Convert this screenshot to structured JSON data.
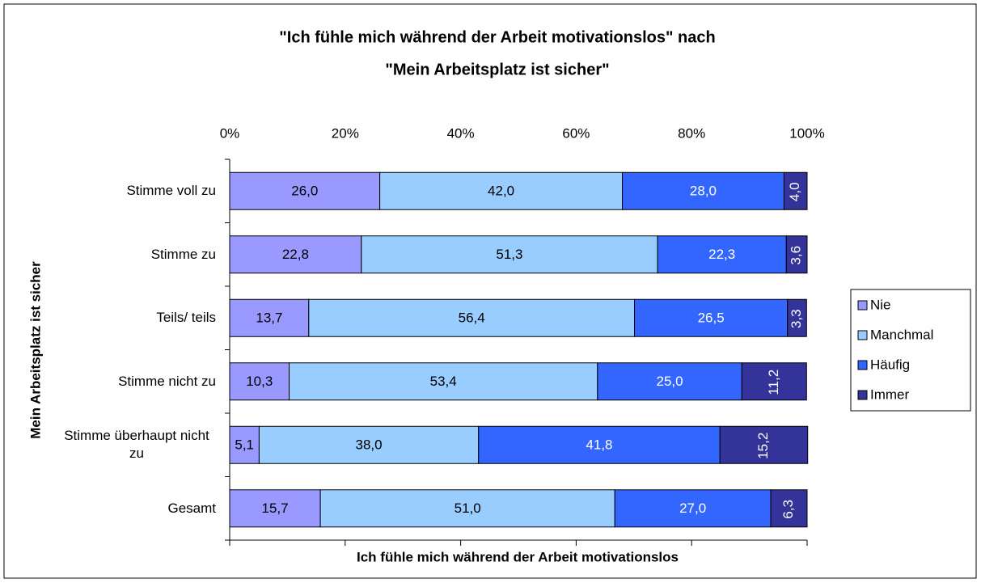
{
  "chart_data": {
    "type": "stacked-bar-horizontal",
    "title": [
      "\"Ich fühle mich während der Arbeit motivationslos\" nach",
      "\"Mein Arbeitsplatz ist sicher\""
    ],
    "x_label": "Ich fühle mich während der Arbeit motivationslos",
    "y_label": "Mein Arbeitsplatz ist sicher",
    "categories": [
      "Stimme voll zu",
      "Stimme zu",
      "Teils/ teils",
      "Stimme nicht zu",
      "Stimme überhaupt nicht zu",
      "Gesamt"
    ],
    "series": [
      {
        "name": "Nie",
        "color": "#9999ff",
        "label_color": "#000000",
        "values": [
          26.0,
          22.8,
          13.7,
          10.3,
          5.1,
          15.7
        ],
        "value_labels": [
          "26,0",
          "22,8",
          "13,7",
          "10,3",
          "5,1",
          "15,7"
        ]
      },
      {
        "name": "Manchmal",
        "color": "#99ccff",
        "label_color": "#000000",
        "values": [
          42.0,
          51.3,
          56.4,
          53.4,
          38.0,
          51.0
        ],
        "value_labels": [
          "42,0",
          "51,3",
          "56,4",
          "53,4",
          "38,0",
          "51,0"
        ]
      },
      {
        "name": "Häufig",
        "color": "#3366ff",
        "label_color": "#ffffff",
        "values": [
          28.0,
          22.3,
          26.5,
          25.0,
          41.8,
          27.0
        ],
        "value_labels": [
          "28,0",
          "22,3",
          "26,5",
          "25,0",
          "41,8",
          "27,0"
        ]
      },
      {
        "name": "Immer",
        "color": "#333399",
        "label_color": "#ffffff",
        "label_rotated": true,
        "values": [
          4.0,
          3.6,
          3.3,
          11.2,
          15.2,
          6.3
        ],
        "value_labels": [
          "4,0",
          "3,6",
          "3,3",
          "11,2",
          "15,2",
          "6,3"
        ]
      }
    ],
    "xlim": [
      0,
      100
    ],
    "xticks": [
      {
        "value": 0,
        "label": "0%"
      },
      {
        "value": 20,
        "label": "20%"
      },
      {
        "value": 40,
        "label": "40%"
      },
      {
        "value": 60,
        "label": "60%"
      },
      {
        "value": 80,
        "label": "80%"
      },
      {
        "value": 100,
        "label": "100%"
      }
    ],
    "legend": "right"
  }
}
